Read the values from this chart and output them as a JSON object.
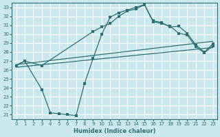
{
  "xlabel": "Humidex (Indice chaleur)",
  "bg_color": "#cce8ef",
  "grid_color": "#ffffff",
  "line_color": "#2a7070",
  "xlim": [
    -0.5,
    23.5
  ],
  "ylim": [
    20.5,
    33.5
  ],
  "xticks": [
    0,
    1,
    2,
    3,
    4,
    5,
    6,
    7,
    8,
    9,
    10,
    11,
    12,
    13,
    14,
    15,
    16,
    17,
    18,
    19,
    20,
    21,
    22,
    23
  ],
  "yticks": [
    21,
    22,
    23,
    24,
    25,
    26,
    27,
    28,
    29,
    30,
    31,
    32,
    33
  ],
  "line_upper": {
    "x": [
      0,
      1,
      3,
      9,
      10,
      11,
      12,
      13,
      14,
      15,
      16,
      17,
      18,
      19,
      20,
      21,
      22,
      23
    ],
    "y": [
      26.5,
      27.0,
      26.5,
      30.3,
      30.8,
      31.2,
      32.0,
      32.6,
      32.8,
      33.3,
      31.5,
      31.3,
      30.8,
      30.9,
      30.1,
      28.8,
      28.0,
      28.9
    ]
  },
  "line_lower": {
    "x": [
      0,
      1,
      3,
      4,
      5,
      6,
      7,
      8,
      9,
      10,
      11,
      12,
      13,
      14,
      15,
      16,
      17,
      18,
      19,
      20,
      21,
      22,
      23
    ],
    "y": [
      26.5,
      27.0,
      23.8,
      21.2,
      21.1,
      21.0,
      20.9,
      24.5,
      27.3,
      30.0,
      31.9,
      32.4,
      32.7,
      33.0,
      33.3,
      31.4,
      31.2,
      30.9,
      30.1,
      29.9,
      28.6,
      27.9,
      28.7
    ]
  },
  "line_trend1": {
    "x": [
      0,
      23
    ],
    "y": [
      26.6,
      29.2
    ]
  },
  "line_trend2": {
    "x": [
      0,
      23
    ],
    "y": [
      26.3,
      28.5
    ]
  }
}
